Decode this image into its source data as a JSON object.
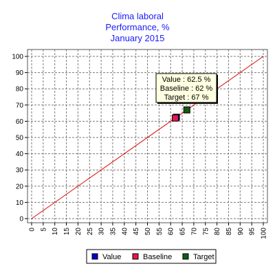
{
  "chart_data": {
    "type": "scatter",
    "title_lines": [
      "Clima laboral",
      "Performance, %",
      "January 2015"
    ],
    "xlim": [
      0,
      100
    ],
    "ylim": [
      0,
      100
    ],
    "xticks": [
      0,
      5,
      10,
      15,
      20,
      25,
      30,
      35,
      40,
      45,
      50,
      55,
      60,
      65,
      70,
      75,
      80,
      85,
      90,
      95,
      100
    ],
    "yticks": [
      0,
      10,
      20,
      30,
      40,
      50,
      60,
      70,
      80,
      90,
      100
    ],
    "grid": true,
    "reference_line": {
      "x": [
        0,
        100
      ],
      "y": [
        0,
        100
      ],
      "color": "#dd0000"
    },
    "series": [
      {
        "name": "Value",
        "x": 62.5,
        "y": 62.5,
        "color": "#0000cc"
      },
      {
        "name": "Baseline",
        "x": 62,
        "y": 62,
        "color": "#e8174a"
      },
      {
        "name": "Target",
        "x": 67,
        "y": 67,
        "color": "#135c13"
      }
    ],
    "tooltip": {
      "lines": [
        "Value : 62.5 %",
        "Baseline : 62 %",
        "Target : 67 %"
      ],
      "background": "#ffffe1"
    },
    "legend_position": "bottom"
  }
}
